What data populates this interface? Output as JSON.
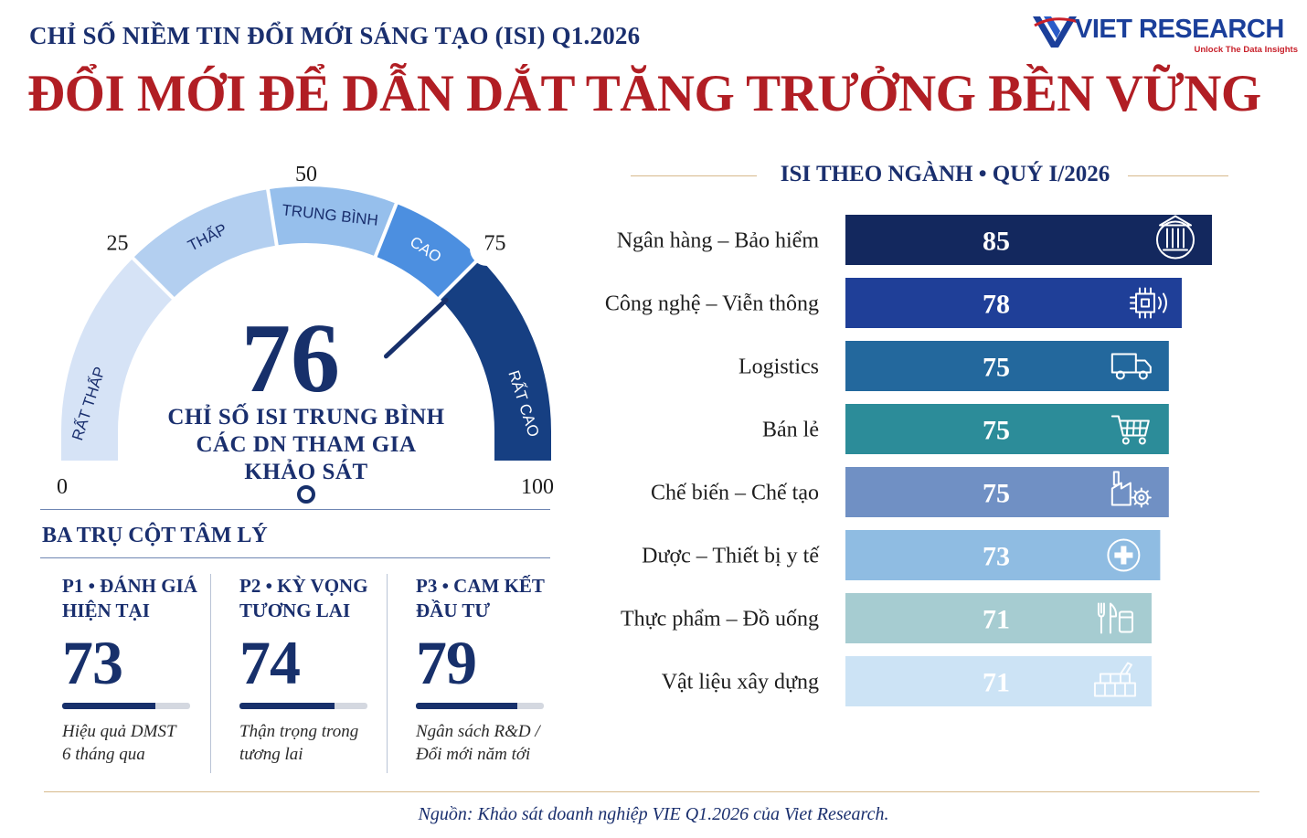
{
  "header": {
    "kicker": "CHỈ SỐ NIỀM TIN ĐỔI MỚI SÁNG TẠO (ISI) Q1.2026",
    "headline": "ĐỔI MỚI ĐỂ DẪN DẮT TĂNG TRƯỞNG BỀN VỮNG"
  },
  "logo": {
    "text": "VIET RESEARCH",
    "tagline": "Unlock The Data Insights",
    "colors": {
      "word": "#1b3f9a",
      "tagline": "#c8202a"
    }
  },
  "chart_data": [
    {
      "type": "gauge",
      "value": 76,
      "value_label": "76",
      "range": [
        0,
        100
      ],
      "ticks": [
        {
          "value": 0,
          "label": "0"
        },
        {
          "value": 25,
          "label": "25"
        },
        {
          "value": 50,
          "label": "50"
        },
        {
          "value": 75,
          "label": "75"
        },
        {
          "value": 100,
          "label": "100"
        }
      ],
      "bands": [
        {
          "label": "RẤT THẤP",
          "from": 0,
          "to": 25,
          "color": "#d6e3f6"
        },
        {
          "label": "THẤP",
          "from": 25,
          "to": 45,
          "color": "#b3cff0"
        },
        {
          "label": "TRUNG BÌNH",
          "from": 45,
          "to": 62,
          "color": "#96bfec"
        },
        {
          "label": "CAO",
          "from": 62,
          "to": 75,
          "color": "#4c8fe0"
        },
        {
          "label": "RẤT CAO",
          "from": 75,
          "to": 100,
          "color": "#163f82"
        }
      ],
      "description": [
        "CHỈ SỐ ISI TRUNG BÌNH",
        "CÁC DN THAM GIA",
        "KHẢO SÁT"
      ]
    },
    {
      "type": "bar",
      "orientation": "horizontal",
      "title": "ISI THEO NGÀNH • QUÝ I/2026",
      "xlim": [
        0,
        85
      ],
      "categories": [
        "Ngân hàng – Bảo hiểm",
        "Công nghệ – Viễn thông",
        "Logistics",
        "Bán lẻ",
        "Chế biến – Chế tạo",
        "Dược – Thiết bị y tế",
        "Thực phẩm – Đồ uống",
        "Vật liệu xây dựng"
      ],
      "values": [
        85,
        78,
        75,
        75,
        75,
        73,
        71,
        71
      ],
      "colors": [
        "#13285e",
        "#1f3f98",
        "#23689d",
        "#2c8c99",
        "#7090c4",
        "#8fbce2",
        "#a6ccd1",
        "#cce3f5"
      ],
      "label_colors": [
        "#ffffff",
        "#ffffff",
        "#ffffff",
        "#ffffff",
        "#ffffff",
        "#ffffff",
        "#ffffff",
        "#ffffff"
      ],
      "icons": [
        "bank-icon",
        "chip-icon",
        "truck-icon",
        "cart-icon",
        "factory-icon",
        "medical-cross-icon",
        "fork-cup-icon",
        "bricks-icon"
      ]
    }
  ],
  "pillars": {
    "title": "BA TRỤ CỘT TÂM LÝ",
    "items": [
      {
        "label_1": "P1 • ĐÁNH GIÁ",
        "label_2": "HIỆN TẠI",
        "value": 73,
        "value_label": "73",
        "note_1": "Hiệu quả DMST",
        "note_2": "6 tháng qua"
      },
      {
        "label_1": "P2 • KỲ VỌNG",
        "label_2": "TƯƠNG LAI",
        "value": 74,
        "value_label": "74",
        "note_1": "Thận trọng trong",
        "note_2": "tương lai"
      },
      {
        "label_1": "P3 • CAM KẾT",
        "label_2": "ĐẦU TƯ",
        "value": 79,
        "value_label": "79",
        "note_1": "Ngân sách R&D /",
        "note_2": "Đổi mới năm tới"
      }
    ]
  },
  "footer": {
    "source": "Nguồn: Khảo sát doanh nghiệp VIE Q1.2026 của Viet Research."
  }
}
